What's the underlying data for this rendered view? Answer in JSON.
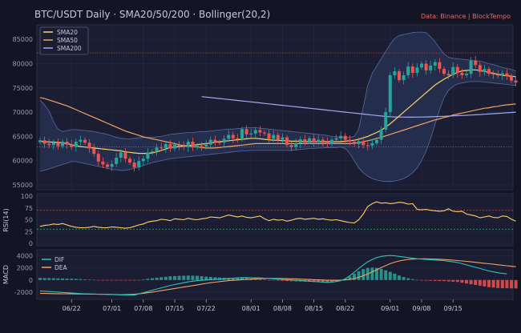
{
  "title": "BTC/USDT Daily  ·  SMA20/50/200  ·  Bollinger(20,2)",
  "source": "Data: Binance  |  BlockTempo",
  "colors": {
    "background": "#141524",
    "panel": "#1b1d33",
    "up": "#26a69a",
    "down": "#ef5350",
    "sma20": "#ffd166",
    "sma50": "#f4a261",
    "sma200": "#a3a8f0",
    "band_fill": "#283355",
    "band_line": "#5a6a9e",
    "dif": "#2ec4b6",
    "dea": "#f4a261",
    "rsi": "#ffd166",
    "ref_red": "#b04a4a",
    "ref_green": "#3f9a7a",
    "text": "#c8c8d8",
    "axis": "#9a9ab0"
  },
  "chart_data": [
    {
      "type": "candlestick",
      "title": "BTC/USDT Daily  ·  SMA20/50/200  ·  Bollinger(20,2)",
      "x_tick_labels": [
        "06/22",
        "07/01",
        "07/08",
        "07/15",
        "07/22",
        "08/01",
        "08/08",
        "08/15",
        "08/22",
        "09/01",
        "09/08",
        "09/15"
      ],
      "x_tick_positions": [
        7,
        16,
        23,
        30,
        37,
        47,
        54,
        61,
        68,
        78,
        85,
        92
      ],
      "ylim": [
        54000,
        88000
      ],
      "yticks": [
        55000,
        60000,
        65000,
        70000,
        75000,
        80000,
        85000
      ],
      "ref_lines": [
        62800,
        82200
      ],
      "legend": [
        "SMA20",
        "SMA50",
        "SMA200"
      ],
      "candles_close": [
        64200,
        63500,
        63200,
        63700,
        63000,
        63900,
        63300,
        62800,
        63900,
        64300,
        63700,
        62500,
        61400,
        59800,
        59200,
        58700,
        59300,
        60600,
        61700,
        60400,
        59600,
        58600,
        59900,
        60400,
        61700,
        61900,
        62700,
        62600,
        63400,
        62500,
        63300,
        63000,
        62800,
        63900,
        62700,
        63100,
        62900,
        63300,
        64300,
        63800,
        63700,
        64500,
        65300,
        64600,
        64400,
        66500,
        65400,
        65600,
        66300,
        65800,
        65600,
        64500,
        65300,
        64300,
        64800,
        63200,
        62800,
        63600,
        64400,
        63900,
        64600,
        63800,
        64300,
        63900,
        63400,
        64300,
        64600,
        65100,
        64300,
        63900,
        63400,
        64000,
        63200,
        63100,
        63600,
        64300,
        66400,
        70000,
        77600,
        78400,
        76600,
        77600,
        79400,
        78100,
        79200,
        80000,
        78600,
        79600,
        80300,
        78900,
        77900,
        77600,
        79300,
        78100,
        77600,
        77900,
        80600,
        79700,
        78300,
        78900,
        77900,
        77700,
        77600,
        78000,
        77400,
        76500,
        76100
      ],
      "sma20": [
        64000,
        63900,
        63850,
        63800,
        63750,
        63650,
        63500,
        63300,
        63100,
        62900,
        62800,
        62700,
        62600,
        62500,
        62400,
        62300,
        62200,
        62100,
        62000,
        61800,
        61700,
        61600,
        61500,
        61500,
        61500,
        61600,
        61800,
        62100,
        62400,
        62700,
        62800,
        62900,
        63000,
        63100,
        63200,
        63300,
        63400,
        63500,
        63600,
        63800,
        63900,
        64000,
        64100,
        64200,
        64300,
        64400,
        64500,
        64600,
        64600,
        64500,
        64400,
        64300,
        64200,
        64200,
        64100,
        64100,
        64000,
        64000,
        64000,
        63900,
        63900,
        63900,
        63900,
        63900,
        63900,
        63900,
        63900,
        63900,
        64000,
        64100,
        64200,
        64400,
        64700,
        65000,
        65400,
        65800,
        66300,
        66900,
        67600,
        68400,
        69200,
        70000,
        70800,
        71600,
        72400,
        73200,
        74000,
        74800,
        75600,
        76200,
        76800,
        77300,
        77800,
        78200,
        78500,
        78600,
        78700,
        78700,
        78600,
        78400,
        78200,
        78000,
        77800,
        77600,
        77500,
        77400,
        77300
      ],
      "sma50": [
        73000,
        72800,
        72500,
        72200,
        71900,
        71600,
        71300,
        70900,
        70500,
        70100,
        69700,
        69300,
        68900,
        68500,
        68100,
        67700,
        67300,
        66900,
        66500,
        66100,
        65800,
        65500,
        65200,
        64900,
        64700,
        64500,
        64300,
        64100,
        63900,
        63700,
        63500,
        63300,
        63100,
        63000,
        62900,
        62800,
        62700,
        62600,
        62600,
        62600,
        62700,
        62800,
        62900,
        63000,
        63100,
        63200,
        63300,
        63400,
        63500,
        63500,
        63500,
        63500,
        63500,
        63500,
        63500,
        63500,
        63500,
        63500,
        63500,
        63500,
        63500,
        63500,
        63500,
        63500,
        63500,
        63500,
        63500,
        63500,
        63500,
        63500,
        63600,
        63700,
        63900,
        64100,
        64300,
        64600,
        64800,
        65100,
        65400,
        65700,
        66000,
        66300,
        66600,
        66900,
        67200,
        67500,
        67800,
        68100,
        68400,
        68600,
        68900,
        69100,
        69400,
        69600,
        69800,
        70000,
        70200,
        70400,
        70600,
        70800,
        70900,
        71100,
        71200,
        71400,
        71500,
        71600,
        71700
      ],
      "sma200_start_index": 36,
      "sma200": [
        73200,
        73100,
        73000,
        72900,
        72800,
        72700,
        72600,
        72500,
        72400,
        72300,
        72200,
        72100,
        72000,
        71900,
        71800,
        71700,
        71600,
        71500,
        71400,
        71300,
        71200,
        71100,
        71000,
        70900,
        70800,
        70700,
        70600,
        70500,
        70400,
        70300,
        70200,
        70100,
        70000,
        69900,
        69800,
        69700,
        69600,
        69500,
        69400,
        69300,
        69200,
        69100,
        69050,
        69000,
        68980,
        68970,
        68960,
        68960,
        68970,
        68990,
        69010,
        69040,
        69070,
        69100,
        69140,
        69180,
        69220,
        69260,
        69300,
        69350,
        69400,
        69450,
        69500,
        69560,
        69620,
        69680,
        69740,
        69800,
        69860,
        69920,
        70000
      ],
      "bollinger_upper": [
        72500,
        71500,
        70200,
        68000,
        66500,
        66000,
        66200,
        66400,
        66400,
        66300,
        66200,
        66100,
        66000,
        65800,
        65600,
        65400,
        65100,
        64800,
        64600,
        64500,
        64500,
        64600,
        64700,
        64800,
        64800,
        64800,
        64900,
        65000,
        65200,
        65400,
        65500,
        65600,
        65700,
        65800,
        65800,
        65900,
        66000,
        66000,
        66100,
        66200,
        66300,
        66400,
        66500,
        66500,
        66600,
        66700,
        66800,
        66800,
        66800,
        66700,
        66600,
        66500,
        66400,
        66300,
        66200,
        66100,
        66000,
        65900,
        65800,
        65700,
        65600,
        65500,
        65400,
        65300,
        65200,
        65000,
        64900,
        64800,
        64800,
        64800,
        65000,
        66500,
        71000,
        75500,
        78000,
        79500,
        81000,
        82500,
        84000,
        85200,
        85800,
        86000,
        86200,
        86400,
        86500,
        86500,
        86400,
        85500,
        84500,
        83200,
        82000,
        81300,
        81100,
        81000,
        80900,
        80800,
        80700,
        80600,
        80500,
        80300,
        80000,
        79800,
        79500,
        79200,
        79000,
        78800,
        78500
      ],
      "bollinger_lower": [
        57800,
        58000,
        58300,
        58600,
        58900,
        59200,
        59500,
        59800,
        59800,
        59600,
        59400,
        59200,
        59000,
        58800,
        58600,
        58400,
        58200,
        58100,
        58000,
        58000,
        58200,
        58400,
        58700,
        59000,
        59300,
        59600,
        59800,
        60000,
        60200,
        60400,
        60500,
        60600,
        60700,
        60800,
        60900,
        61000,
        61100,
        61200,
        61300,
        61400,
        61500,
        61600,
        61700,
        61800,
        61900,
        62000,
        62000,
        62100,
        62100,
        62100,
        62100,
        62100,
        62100,
        62100,
        62100,
        62100,
        62100,
        62200,
        62300,
        62400,
        62500,
        62500,
        62600,
        62600,
        62700,
        62700,
        62700,
        62800,
        62500,
        61500,
        60000,
        58500,
        57500,
        56800,
        56300,
        56000,
        55800,
        55700,
        55700,
        55800,
        56000,
        56300,
        56800,
        57500,
        58500,
        60000,
        62000,
        64500,
        67500,
        70500,
        73000,
        74500,
        75300,
        75800,
        76000,
        76200,
        76300,
        76300,
        76300,
        76200,
        76100,
        76000,
        75900,
        75800,
        75700,
        75600,
        75500
      ]
    },
    {
      "type": "line",
      "ylabel": "RSI(14)",
      "ylim": [
        0,
        100
      ],
      "yticks": [
        0,
        25,
        50,
        75,
        100
      ],
      "ref_lines": [
        70,
        30
      ],
      "values": [
        36,
        38,
        39,
        41,
        40,
        42,
        39,
        36,
        34,
        33,
        33,
        34,
        36,
        34,
        33,
        33,
        35,
        34,
        33,
        32,
        33,
        36,
        39,
        41,
        45,
        47,
        48,
        51,
        50,
        48,
        52,
        51,
        50,
        53,
        51,
        50,
        52,
        53,
        56,
        55,
        54,
        57,
        60,
        58,
        56,
        58,
        55,
        54,
        56,
        58,
        52,
        48,
        51,
        49,
        50,
        47,
        49,
        52,
        53,
        51,
        52,
        53,
        51,
        52,
        50,
        49,
        50,
        48,
        46,
        44,
        43,
        50,
        62,
        78,
        84,
        88,
        85,
        86,
        84,
        85,
        87,
        86,
        83,
        84,
        72,
        71,
        72,
        70,
        69,
        68,
        69,
        73,
        68,
        67,
        68,
        62,
        60,
        58,
        54,
        56,
        58,
        55,
        54,
        58,
        57,
        51,
        47
      ]
    },
    {
      "type": "bar+line",
      "ylabel": "MACD",
      "ylim": [
        -3200,
        5000
      ],
      "yticks": [
        -2000,
        0,
        2000,
        4000
      ],
      "series": [
        {
          "name": "DIF",
          "values": [
            -1800,
            -1850,
            -1900,
            -1950,
            -2000,
            -2050,
            -2100,
            -2150,
            -2200,
            -2250,
            -2280,
            -2300,
            -2320,
            -2340,
            -2360,
            -2380,
            -2400,
            -2420,
            -2440,
            -2460,
            -2470,
            -2480,
            -2300,
            -2100,
            -1900,
            -1700,
            -1500,
            -1300,
            -1100,
            -900,
            -750,
            -600,
            -450,
            -300,
            -200,
            -100,
            -50,
            0,
            50,
            100,
            150,
            200,
            250,
            300,
            350,
            400,
            400,
            380,
            360,
            340,
            300,
            250,
            200,
            150,
            100,
            50,
            0,
            -50,
            -100,
            -150,
            -200,
            -250,
            -300,
            -350,
            -400,
            -350,
            -250,
            -100,
            200,
            700,
            1300,
            1900,
            2500,
            3000,
            3400,
            3700,
            3900,
            4000,
            4050,
            4000,
            3900,
            3800,
            3700,
            3600,
            3500,
            3450,
            3400,
            3350,
            3300,
            3250,
            3200,
            3100,
            3000,
            2900,
            2700,
            2500,
            2300,
            2100,
            1900,
            1700,
            1500,
            1350,
            1200,
            1100,
            1000
          ]
        },
        {
          "name": "DEA",
          "values": [
            -2200,
            -2220,
            -2240,
            -2250,
            -2260,
            -2270,
            -2280,
            -2290,
            -2300,
            -2310,
            -2320,
            -2330,
            -2340,
            -2350,
            -2360,
            -2370,
            -2380,
            -2390,
            -2400,
            -2400,
            -2380,
            -2340,
            -2280,
            -2200,
            -2100,
            -2000,
            -1880,
            -1760,
            -1640,
            -1520,
            -1400,
            -1280,
            -1160,
            -1040,
            -920,
            -800,
            -680,
            -560,
            -450,
            -350,
            -260,
            -180,
            -110,
            -50,
            0,
            50,
            100,
            150,
            200,
            230,
            250,
            260,
            260,
            250,
            240,
            220,
            200,
            180,
            150,
            120,
            90,
            60,
            30,
            0,
            -30,
            -40,
            -40,
            -20,
            20,
            100,
            250,
            450,
            700,
            1000,
            1350,
            1700,
            2050,
            2400,
            2700,
            2950,
            3150,
            3300,
            3400,
            3450,
            3480,
            3500,
            3500,
            3480,
            3450,
            3420,
            3380,
            3330,
            3280,
            3220,
            3150,
            3080,
            3000,
            2920,
            2840,
            2760,
            2680,
            2600,
            2520,
            2440,
            2360,
            2280,
            2200
          ]
        }
      ],
      "histogram": [
        350,
        330,
        320,
        300,
        280,
        260,
        240,
        220,
        200,
        150,
        100,
        60,
        20,
        -30,
        -60,
        -80,
        -70,
        -60,
        -50,
        -40,
        -30,
        -20,
        20,
        100,
        200,
        300,
        380,
        460,
        540,
        620,
        650,
        680,
        710,
        740,
        720,
        700,
        630,
        560,
        500,
        450,
        410,
        380,
        360,
        350,
        350,
        350,
        300,
        230,
        160,
        110,
        50,
        -10,
        -60,
        -100,
        -140,
        -170,
        -200,
        -230,
        -250,
        -270,
        -290,
        -310,
        -330,
        -350,
        -370,
        -310,
        -210,
        -80,
        180,
        600,
        1050,
        1450,
        1800,
        2000,
        2050,
        2000,
        1850,
        1600,
        1350,
        1050,
        750,
        500,
        300,
        150,
        20,
        -50,
        -100,
        -130,
        -150,
        -170,
        -180,
        -230,
        -280,
        -320,
        -450,
        -580,
        -700,
        -820,
        -940,
        -1060,
        -1180,
        -1250,
        -1320,
        -1340,
        -1360,
        -1380,
        -1400
      ]
    }
  ]
}
